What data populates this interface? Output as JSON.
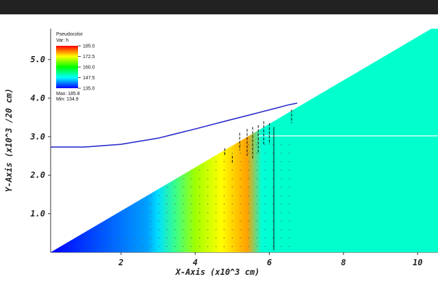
{
  "chart_data": {
    "type": "heatmap",
    "title": "",
    "xlabel": "X-Axis (x10^3 cm)",
    "ylabel": "Y-Axis (x10^3 /20 cm)",
    "xlim": [
      0.1,
      10.55
    ],
    "ylim": [
      0,
      5.8
    ],
    "x_ticks": [
      "2",
      "4",
      "6",
      "8",
      "10"
    ],
    "x_tick_values": [
      2,
      4,
      6,
      8,
      10
    ],
    "y_ticks": [
      "1.0",
      "2.0",
      "3.0",
      "4.0",
      "5.0"
    ],
    "y_tick_values": [
      1.0,
      2.0,
      3.0,
      4.0,
      5.0
    ],
    "legend": {
      "title": "Pseudocolor",
      "var": "Var: h",
      "levels": [
        "185.0",
        "172.5",
        "160.0",
        "147.5",
        "135.0"
      ],
      "max": "Max: 185.8",
      "min": "Min: 134.9",
      "colors": [
        "#ff0000",
        "#ffff00",
        "#00ff00",
        "#00ffff",
        "#0000ff"
      ]
    },
    "domain_slope_line": {
      "x": [
        0.1,
        10.55
      ],
      "y": [
        0,
        5.9
      ]
    },
    "curve": {
      "color": "#2a2acc",
      "x": [
        0.1,
        1.0,
        2.0,
        3.0,
        4.0,
        4.8,
        5.5,
        6.1,
        6.5,
        6.75
      ],
      "y": [
        2.73,
        2.73,
        2.8,
        2.96,
        3.2,
        3.4,
        3.57,
        3.72,
        3.82,
        3.87
      ]
    },
    "free_surface_line": {
      "x": [
        5.7,
        10.55
      ],
      "y": [
        3.02,
        3.02
      ],
      "color": "#ffffff"
    },
    "field_gradient": {
      "x": [
        0.1,
        2.7,
        3.0,
        3.5,
        4.0,
        4.7,
        5.4,
        5.8,
        6.2
      ],
      "colors": [
        "#0000ff",
        "#00a0ff",
        "#00e0ff",
        "#40ff80",
        "#a0ff00",
        "#ffff00",
        "#ffa000",
        "#00ffd8",
        "#00ffcc"
      ]
    },
    "uniform_region_color": "#00ffcc",
    "vertical_line": {
      "x": [
        6.12,
        6.12
      ],
      "y": [
        0.05,
        3.25
      ]
    },
    "vectors": [
      {
        "x": 5.2,
        "y": 3.1,
        "dy": -0.45
      },
      {
        "x": 5.4,
        "y": 3.2,
        "dy": -0.7
      },
      {
        "x": 5.55,
        "y": 3.25,
        "dy": -0.85
      },
      {
        "x": 5.7,
        "y": 3.3,
        "dy": -0.75
      },
      {
        "x": 5.85,
        "y": 3.4,
        "dy": -0.6
      },
      {
        "x": 6.0,
        "y": 3.35,
        "dy": -0.55
      },
      {
        "x": 6.6,
        "y": 3.7,
        "dy": -0.35
      },
      {
        "x": 4.8,
        "y": 2.7,
        "dy": -0.2
      },
      {
        "x": 5.0,
        "y": 2.5,
        "dy": -0.2
      }
    ]
  }
}
